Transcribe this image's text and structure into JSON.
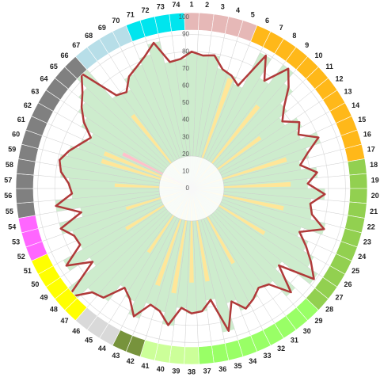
{
  "chart_data": {
    "type": "radial-bar",
    "categories": [
      "1",
      "2",
      "3",
      "4",
      "5",
      "6",
      "7",
      "8",
      "9",
      "10",
      "11",
      "12",
      "13",
      "14",
      "15",
      "16",
      "17",
      "18",
      "19",
      "20",
      "21",
      "22",
      "23",
      "24",
      "25",
      "26",
      "27",
      "28",
      "29",
      "30",
      "31",
      "32",
      "33",
      "34",
      "35",
      "36",
      "37",
      "38",
      "39",
      "40",
      "41",
      "42",
      "43",
      "44",
      "45",
      "46",
      "47",
      "48",
      "49",
      "50",
      "51",
      "52",
      "53",
      "54",
      "55",
      "56",
      "57",
      "58",
      "59",
      "60",
      "61",
      "62",
      "63",
      "64",
      "65",
      "66",
      "67",
      "68",
      "69",
      "70",
      "71",
      "72",
      "73",
      "74"
    ],
    "ring_colors": [
      "#e6b8b7",
      "#e6b8b7",
      "#e6b8b7",
      "#e6b8b7",
      "#e6b8b7",
      "#ffb819",
      "#ffb819",
      "#ffb819",
      "#ffb819",
      "#ffb819",
      "#ffb819",
      "#ffb819",
      "#ffb819",
      "#ffb819",
      "#ffb819",
      "#ffb819",
      "#ffb819",
      "#92d050",
      "#92d050",
      "#92d050",
      "#92d050",
      "#92d050",
      "#92d050",
      "#92d050",
      "#92d050",
      "#92d050",
      "#92d050",
      "#92d050",
      "#99ff66",
      "#99ff66",
      "#99ff66",
      "#99ff66",
      "#99ff66",
      "#99ff66",
      "#99ff66",
      "#99ff66",
      "#99ff66",
      "#ccff99",
      "#ccff99",
      "#ccff99",
      "#ccff99",
      "#77933c",
      "#77933c",
      "#d9d9d9",
      "#d9d9d9",
      "#d9d9d9",
      "#ffff00",
      "#ffff00",
      "#ffff00",
      "#ffff00",
      "#ffff00",
      "#ff66ff",
      "#ff66ff",
      "#ff66ff",
      "#808080",
      "#808080",
      "#808080",
      "#808080",
      "#808080",
      "#808080",
      "#808080",
      "#808080",
      "#808080",
      "#808080",
      "#808080",
      "#808080",
      "#b7dee8",
      "#b7dee8",
      "#b7dee8",
      "#b7dee8",
      "#00e5ee",
      "#00e5ee",
      "#00e5ee",
      "#00e5ee"
    ],
    "series": [
      {
        "color": "#cdeccd",
        "line_color": "#b03a3a",
        "outline": true,
        "values": [
          80,
          78,
          79,
          72,
          70,
          66,
          89,
          76,
          90,
          82,
          72,
          66,
          74,
          70,
          80,
          71,
          65,
          74,
          68,
          78,
          70,
          72,
          81,
          68,
          75,
          82,
          89,
          68,
          84,
          72,
          70,
          74,
          77,
          70,
          86,
          66,
          72,
          73,
          70,
          81,
          74,
          72,
          82,
          74,
          70,
          82,
          84,
          96,
          72,
          86,
          73,
          74,
          80,
          66,
          80,
          70,
          72,
          77,
          79,
          75,
          70,
          66,
          74,
          80,
          85,
          93,
          70,
          68,
          75,
          78,
          82,
          88,
          75,
          76
        ]
      },
      {
        "color": "#ffe699",
        "outline": false,
        "values": [
          null,
          null,
          null,
          null,
          68,
          null,
          null,
          null,
          62,
          null,
          null,
          50,
          null,
          null,
          null,
          58,
          null,
          null,
          58,
          null,
          null,
          55,
          null,
          null,
          null,
          50,
          null,
          null,
          null,
          null,
          null,
          50,
          null,
          null,
          null,
          55,
          null,
          55,
          null,
          62,
          null,
          60,
          null,
          null,
          45,
          null,
          null,
          null,
          null,
          45,
          null,
          null,
          40,
          null,
          null,
          null,
          45,
          null,
          null,
          55,
          55,
          null,
          null,
          null,
          null,
          null,
          55,
          null,
          null,
          null,
          null,
          null,
          null,
          null
        ]
      },
      {
        "color": "#ffc0cb",
        "outline": false,
        "values": [
          null,
          null,
          null,
          null,
          null,
          null,
          null,
          null,
          null,
          null,
          null,
          null,
          null,
          null,
          null,
          null,
          null,
          null,
          null,
          null,
          null,
          null,
          null,
          null,
          null,
          null,
          null,
          null,
          null,
          null,
          null,
          null,
          null,
          null,
          null,
          null,
          null,
          null,
          null,
          null,
          null,
          null,
          null,
          null,
          null,
          null,
          null,
          null,
          null,
          null,
          null,
          null,
          null,
          null,
          null,
          null,
          null,
          null,
          null,
          null,
          null,
          45,
          null,
          null,
          null,
          null,
          null,
          null,
          null,
          null,
          null,
          null,
          null,
          null
        ]
      }
    ],
    "rlim": [
      0,
      100
    ],
    "rticks": [
      0,
      10,
      20,
      30,
      40,
      50,
      60,
      70,
      80,
      90,
      100
    ],
    "grid": true
  }
}
